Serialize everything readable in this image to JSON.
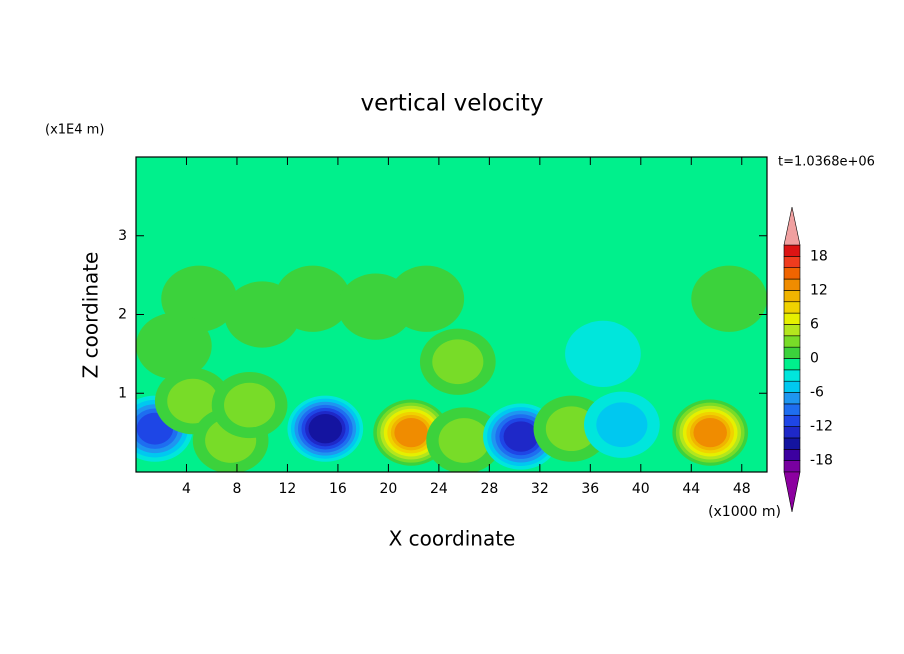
{
  "chart_data": {
    "type": "contour",
    "title": "vertical velocity",
    "x_label": "X coordinate",
    "y_label": "Z coordinate",
    "x_unit": "(x1000 m)",
    "y_unit": "(x1E4 m)",
    "annotation": "t=1.0368e+06",
    "xlim": [
      0,
      50
    ],
    "ylim": [
      0,
      4
    ],
    "xticks": [
      4,
      8,
      12,
      16,
      20,
      24,
      28,
      32,
      36,
      40,
      44,
      48
    ],
    "yticks": [
      1,
      2,
      3
    ],
    "base_value": -1,
    "features": [
      {
        "x": 5,
        "z": 2.2,
        "value": 1
      },
      {
        "x": 10,
        "z": 2.0,
        "value": 1
      },
      {
        "x": 14,
        "z": 2.2,
        "value": 1
      },
      {
        "x": 19,
        "z": 2.1,
        "value": 1
      },
      {
        "x": 23,
        "z": 2.2,
        "value": 1
      },
      {
        "x": 3,
        "z": 1.6,
        "value": 1
      },
      {
        "x": 47,
        "z": 2.2,
        "value": 1
      },
      {
        "x": 25.5,
        "z": 1.4,
        "value": 3
      },
      {
        "x": 37,
        "z": 1.5,
        "value": -3
      },
      {
        "x": 1.5,
        "z": 0.55,
        "value": -10
      },
      {
        "x": 4.5,
        "z": 0.9,
        "value": 4
      },
      {
        "x": 7.5,
        "z": 0.4,
        "value": 4
      },
      {
        "x": 9,
        "z": 0.85,
        "value": 4
      },
      {
        "x": 15,
        "z": 0.55,
        "value": -14
      },
      {
        "x": 21.8,
        "z": 0.5,
        "value": 14
      },
      {
        "x": 26,
        "z": 0.4,
        "value": 3
      },
      {
        "x": 30.5,
        "z": 0.45,
        "value": -12
      },
      {
        "x": 34.5,
        "z": 0.55,
        "value": 3
      },
      {
        "x": 38.5,
        "z": 0.6,
        "value": -5
      },
      {
        "x": 45.5,
        "z": 0.5,
        "value": 14
      }
    ],
    "colorbar": {
      "levels": [
        -20,
        -18,
        -16,
        -14,
        -12,
        -10,
        -8,
        -6,
        -4,
        -2,
        0,
        2,
        4,
        6,
        8,
        10,
        12,
        14,
        16,
        18,
        20
      ],
      "colors": [
        "#7800a0",
        "#3c00a0",
        "#1414a0",
        "#1e28c8",
        "#1e46e6",
        "#1e6ef0",
        "#1e96f0",
        "#00c8f0",
        "#00e6dc",
        "#00f08c",
        "#3cd23c",
        "#78dc28",
        "#b4e61e",
        "#e6f000",
        "#f0d200",
        "#f0b400",
        "#f08c00",
        "#f06400",
        "#f03c1e",
        "#dc1414"
      ],
      "under_color": "#8c00a0",
      "over_color": "#f0a0a0",
      "ticks": [
        -18,
        -12,
        -6,
        0,
        6,
        12,
        18
      ]
    }
  }
}
